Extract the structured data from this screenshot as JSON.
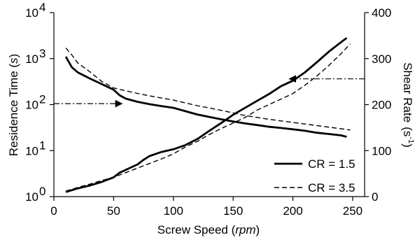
{
  "chart_data": {
    "type": "line",
    "xlabel_main": "Screw Speed (",
    "xlabel_unit": "rpm",
    "xlabel_close": ")",
    "ylabel_left_main": "Residence Time (",
    "ylabel_left_unit": "s",
    "ylabel_left_close": ")",
    "ylabel_right_main": "Shear Rate",
    "ylabel_right_unit": "(s",
    "ylabel_right_exp": "-1",
    "ylabel_right_close": ")",
    "x_ticks": [
      "0",
      "50",
      "100",
      "150",
      "200",
      "250"
    ],
    "xlim": [
      0,
      260
    ],
    "y_left_scale": "log",
    "y_left_ticks": [
      {
        "base": "10",
        "exp": "0",
        "value": 1
      },
      {
        "base": "10",
        "exp": "1",
        "value": 10
      },
      {
        "base": "10",
        "exp": "2",
        "value": 100
      },
      {
        "base": "10",
        "exp": "3",
        "value": 1000
      },
      {
        "base": "10",
        "exp": "4",
        "value": 10000
      }
    ],
    "y_left_lim": [
      1,
      10000
    ],
    "y_right_ticks": [
      "0",
      "100",
      "200",
      "300",
      "400"
    ],
    "y_right_lim": [
      0,
      400
    ],
    "legend_position": "bottom-right",
    "series": [
      {
        "name": "CR = 1.5",
        "axis": "left",
        "style": "solid",
        "x": [
          10,
          15,
          20,
          30,
          40,
          50,
          55,
          60,
          70,
          80,
          90,
          100,
          110,
          120,
          130,
          140,
          150,
          160,
          170,
          180,
          190,
          200,
          210,
          220,
          230,
          240,
          245
        ],
        "y": [
          1100,
          650,
          500,
          370,
          280,
          210,
          160,
          135,
          115,
          102,
          93,
          85,
          72,
          61,
          54,
          48,
          43,
          39,
          36,
          33,
          31,
          29,
          27,
          24.5,
          23,
          21.5,
          20
        ]
      },
      {
        "name": "CR = 1.5",
        "axis": "right",
        "style": "solid",
        "x": [
          10,
          20,
          30,
          40,
          50,
          55,
          60,
          65,
          70,
          75,
          80,
          90,
          100,
          110,
          120,
          130,
          140,
          150,
          160,
          170,
          180,
          190,
          200,
          210,
          220,
          230,
          240,
          245
        ],
        "y": [
          10,
          18,
          24,
          32,
          42,
          52,
          58,
          64,
          70,
          80,
          88,
          97,
          103,
          112,
          125,
          143,
          160,
          178,
          193,
          208,
          223,
          240,
          252,
          270,
          292,
          315,
          335,
          345
        ]
      },
      {
        "name": "CR = 3.5",
        "axis": "left",
        "style": "dashed",
        "x": [
          10,
          15,
          20,
          30,
          40,
          50,
          60,
          70,
          80,
          100,
          120,
          140,
          160,
          180,
          200,
          220,
          240,
          248
        ],
        "y": [
          1700,
          1200,
          800,
          520,
          320,
          230,
          200,
          175,
          155,
          125,
          95,
          75,
          58,
          48,
          41,
          35,
          30,
          28
        ]
      },
      {
        "name": "CR = 3.5",
        "axis": "right",
        "style": "dashed",
        "x": [
          10,
          20,
          30,
          40,
          50,
          60,
          70,
          80,
          90,
          100,
          110,
          120,
          130,
          140,
          150,
          160,
          170,
          180,
          190,
          200,
          210,
          220,
          230,
          240,
          248
        ],
        "y": [
          12,
          20,
          27,
          35,
          42,
          52,
          62,
          72,
          82,
          93,
          108,
          120,
          135,
          148,
          160,
          172,
          188,
          200,
          212,
          224,
          242,
          262,
          285,
          310,
          332
        ]
      }
    ],
    "legend": [
      {
        "label": "CR = 1.5",
        "style": "solid"
      },
      {
        "label": "CR = 3.5",
        "style": "dashed"
      }
    ],
    "annotations": [
      {
        "type": "arrow",
        "style": "dashdot",
        "direction": "left-axis",
        "from_x": 0,
        "to_x": 57,
        "y_left": 105
      },
      {
        "type": "arrow",
        "style": "dashdot",
        "direction": "right-axis",
        "from_x": 260,
        "to_x": 197,
        "y_right": 256
      }
    ]
  }
}
